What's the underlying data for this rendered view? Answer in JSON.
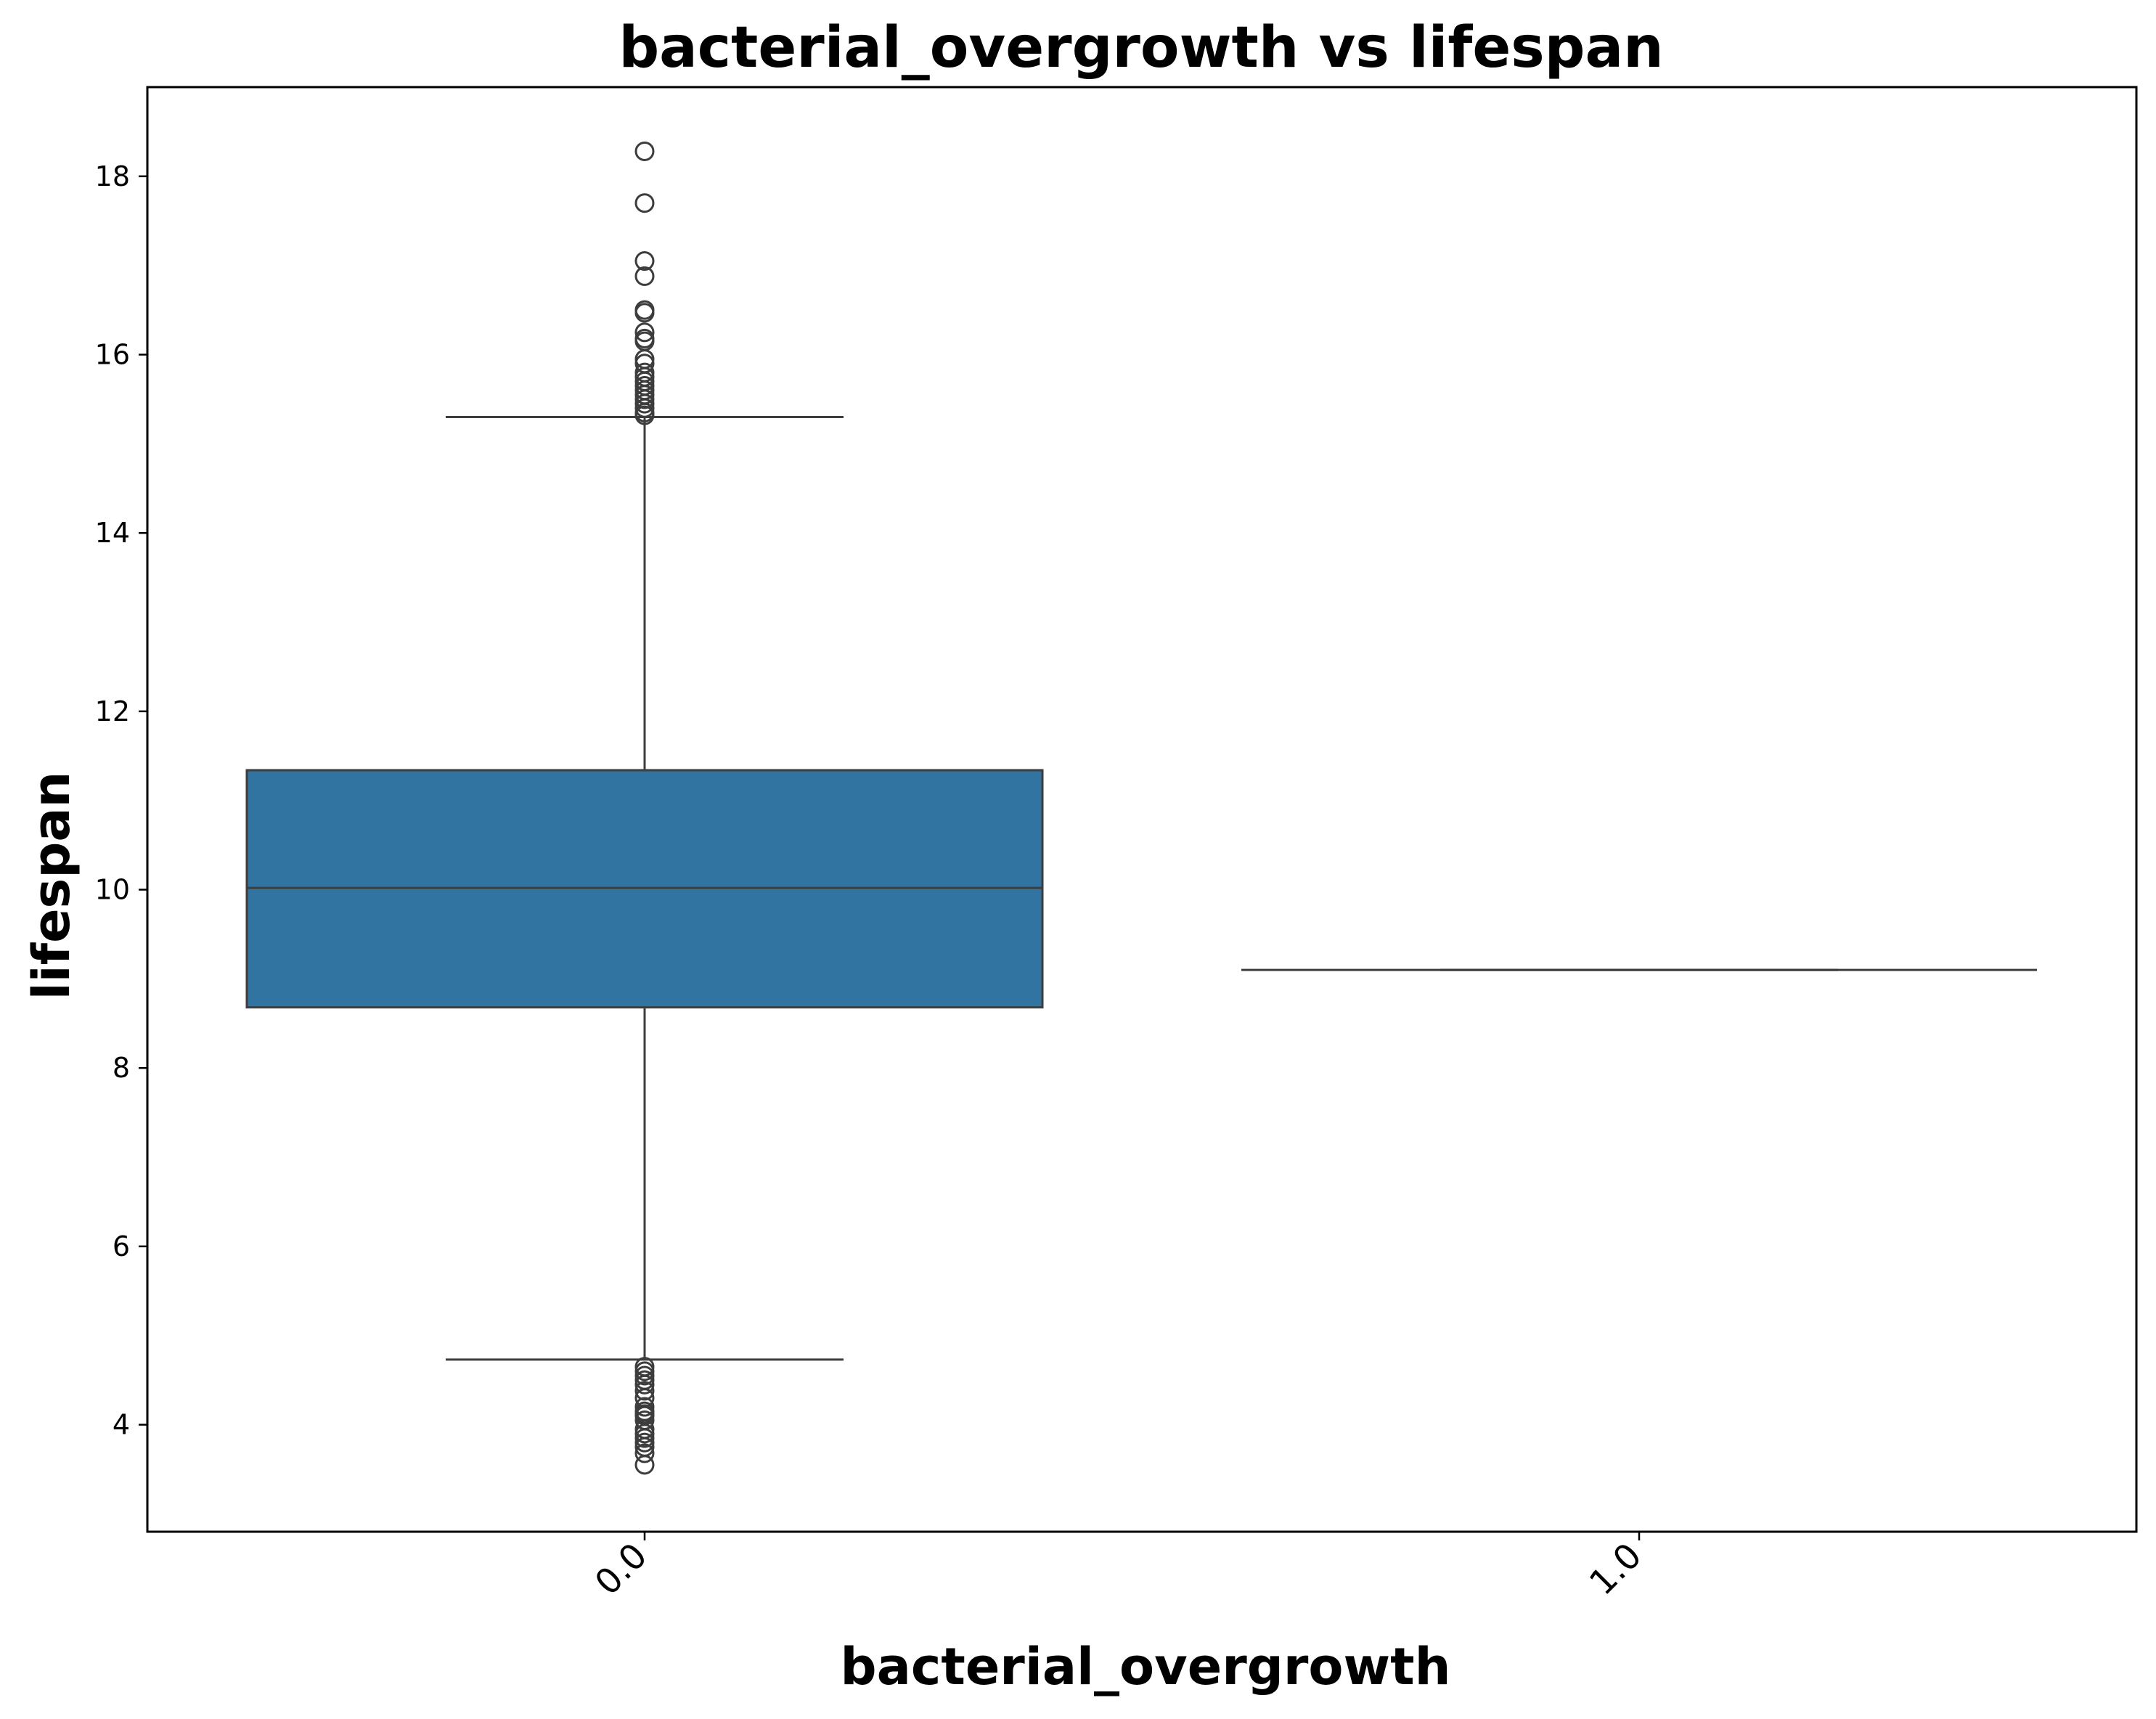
{
  "chart_data": {
    "type": "box",
    "title": "bacterial_overgrowth vs lifespan",
    "xlabel": "bacterial_overgrowth",
    "ylabel": "lifespan",
    "ylim": [
      2.8,
      19.0
    ],
    "yticks": [
      4,
      6,
      8,
      10,
      12,
      14,
      16,
      18
    ],
    "grid": false,
    "categories": [
      "0.0",
      "1.0"
    ],
    "boxes": [
      {
        "category": "0.0",
        "whisker_low": 4.73,
        "q1": 8.68,
        "median": 10.02,
        "q3": 11.34,
        "whisker_high": 15.3,
        "outliers_high": [
          18.28,
          17.7,
          17.05,
          16.88,
          16.5,
          16.47,
          16.25,
          16.18,
          16.15,
          15.95,
          15.9,
          15.8,
          15.75,
          15.7,
          15.65,
          15.6,
          15.55,
          15.5,
          15.45,
          15.4,
          15.35,
          15.32
        ],
        "outliers_low": [
          4.65,
          4.6,
          4.55,
          4.5,
          4.45,
          4.38,
          4.3,
          4.2,
          4.15,
          4.12,
          4.1,
          4.05,
          3.95,
          3.9,
          3.85,
          3.8,
          3.75,
          3.68,
          3.55
        ]
      },
      {
        "category": "1.0",
        "whisker_low": 9.1,
        "q1": 9.1,
        "median": 9.1,
        "q3": 9.1,
        "whisker_high": 9.1,
        "outliers_high": [],
        "outliers_low": []
      }
    ],
    "colors": {
      "box_fill": "#3274a1",
      "line": "#3d3d3d",
      "frame": "#000000"
    }
  }
}
